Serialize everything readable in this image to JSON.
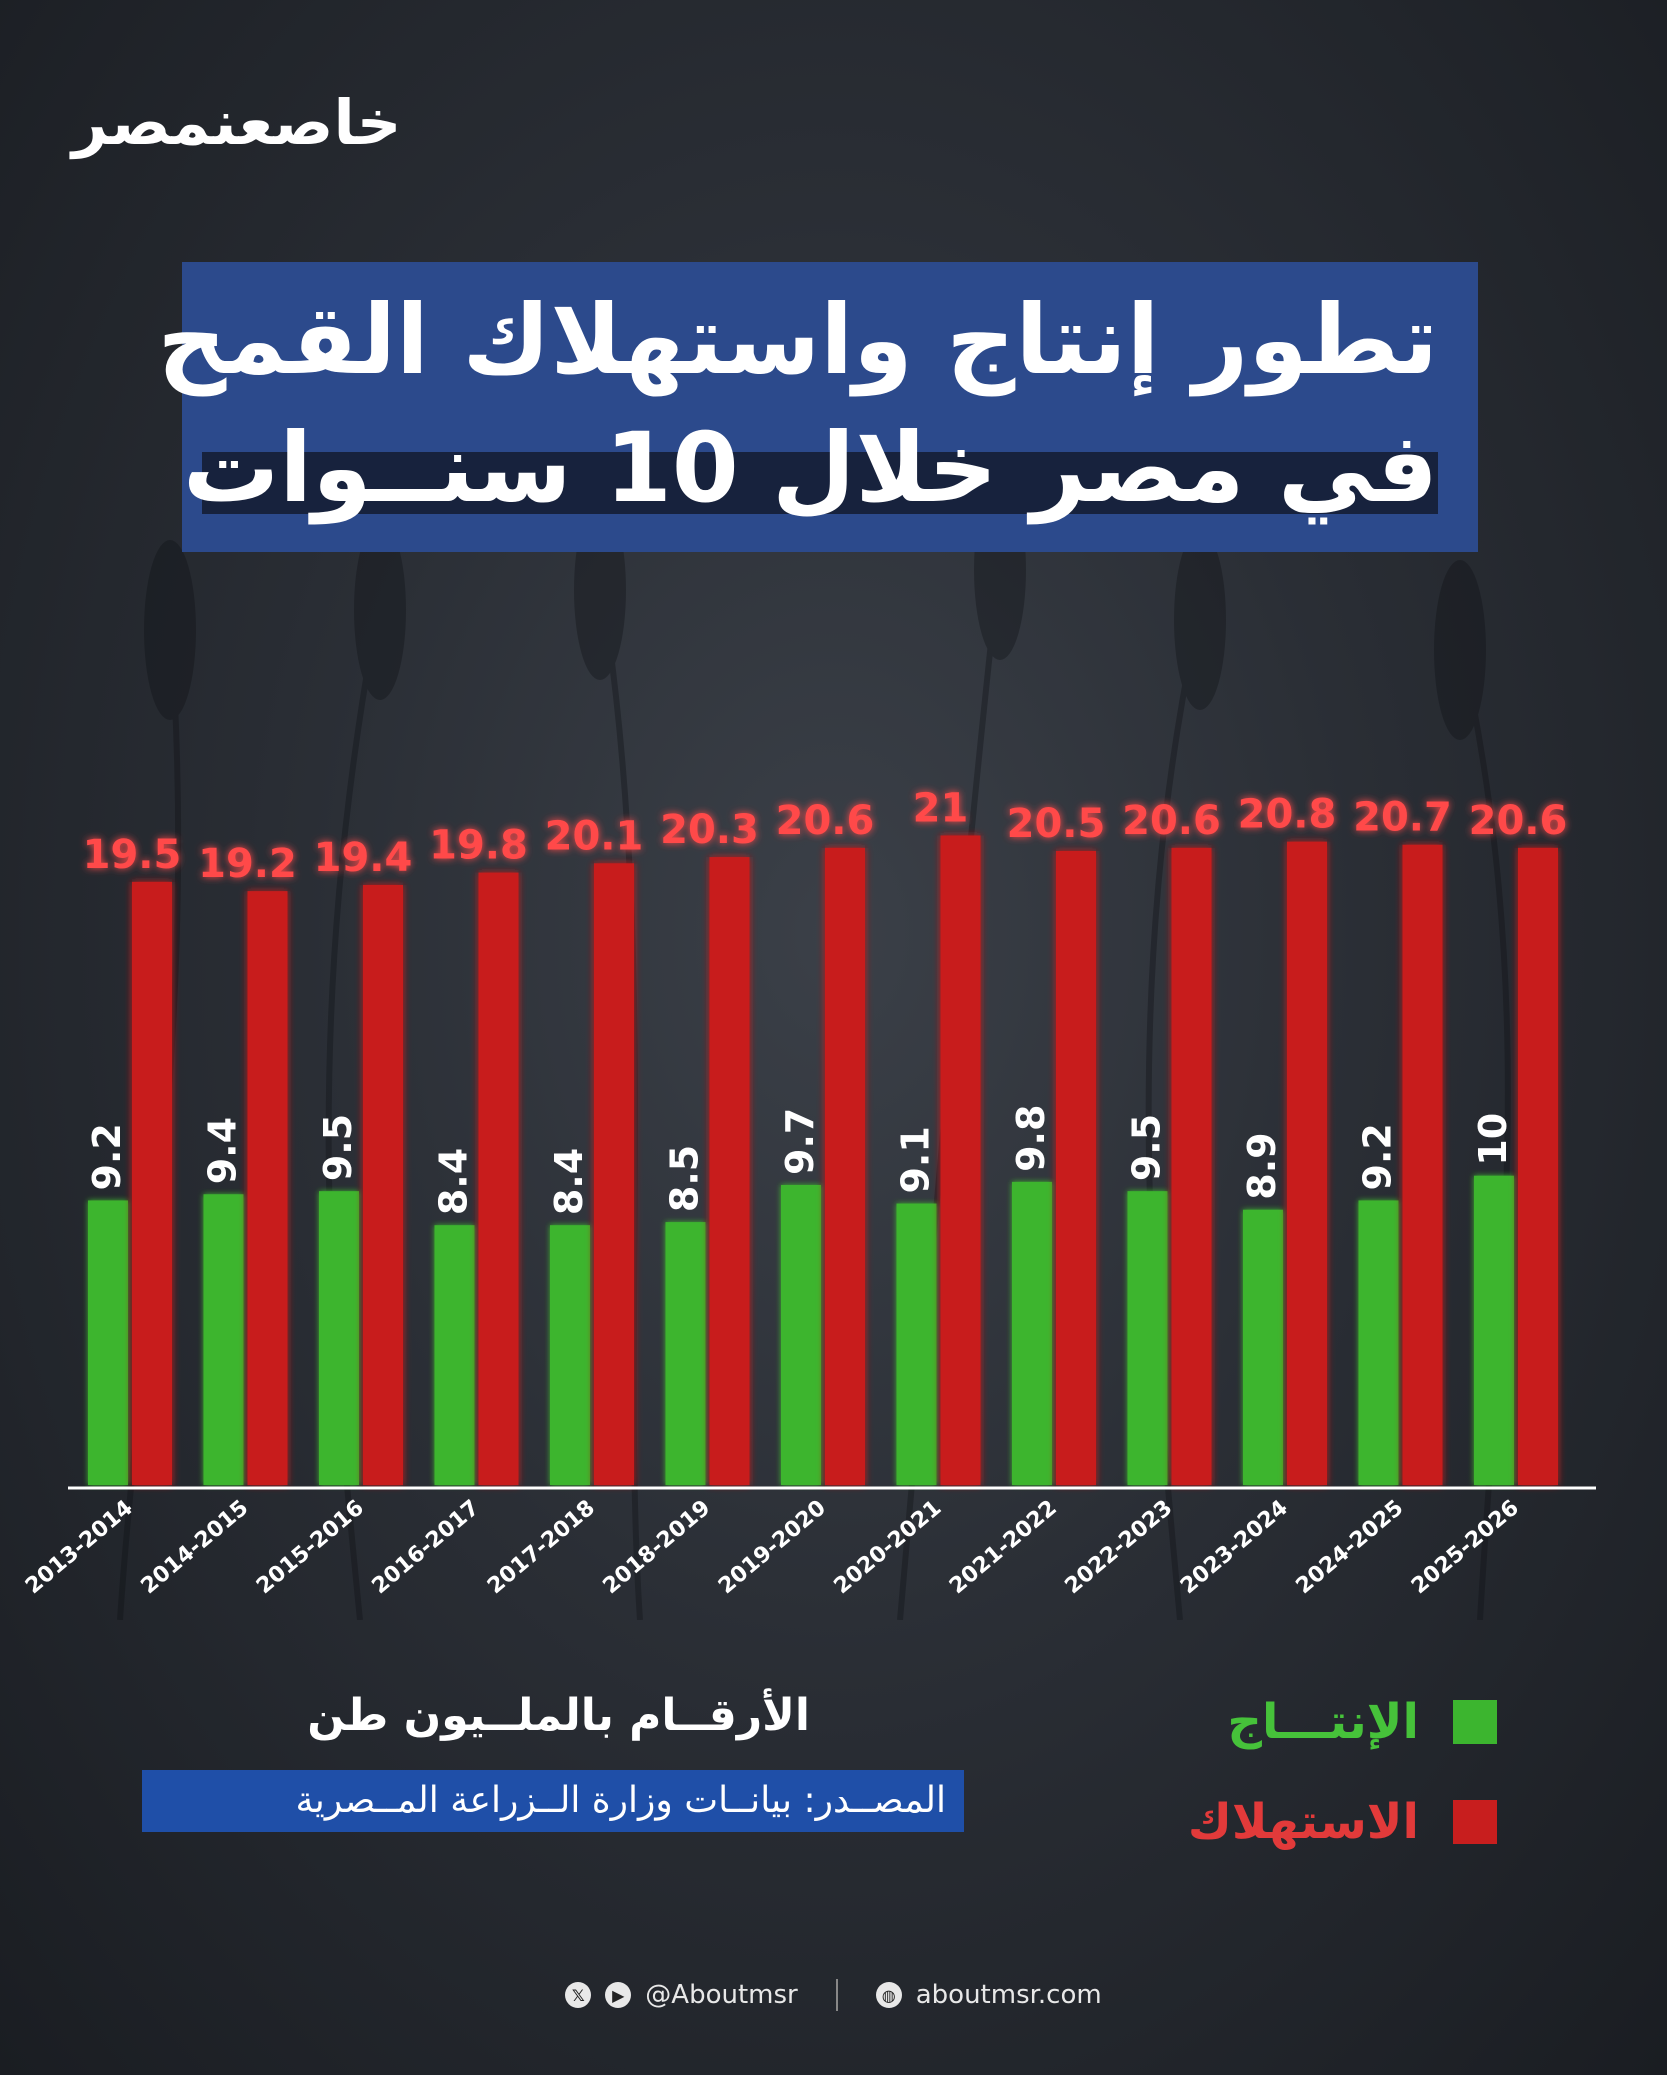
{
  "brand": {
    "logo_text": "خاصعنمصر"
  },
  "title": {
    "line1": "تطور إنتاج واستهلاك القمح",
    "line2": "في مصر خلال 10 سنــوات"
  },
  "legend": {
    "production": "الإنتـــاج",
    "consumption": "الاستهلاك"
  },
  "units_note": "الأرقــام بالملــيون طن",
  "source": "المصــدر: بيانــات وزارة الــزراعة المــصرية",
  "footer": {
    "handle": "@Aboutmsr",
    "website": "aboutmsr.com",
    "icons": [
      "x-icon",
      "youtube-icon",
      "globe-icon"
    ]
  },
  "colors": {
    "production": "#3cb52f",
    "consumption": "#c81e1e",
    "title_bg": "#2c4a8c",
    "source_bg": "#1f4fa8"
  },
  "chart_data": {
    "type": "bar",
    "categories": [
      "2013-2014",
      "2014-2015",
      "2015-2016",
      "2016-2017",
      "2017-2018",
      "2018-2019",
      "2019-2020",
      "2020-2021",
      "2021-2022",
      "2022-2023",
      "2023-2024",
      "2024-2025",
      "2025-2026"
    ],
    "series": [
      {
        "name": "الإنتـــاج",
        "values": [
          9.2,
          9.4,
          9.5,
          8.4,
          8.4,
          8.5,
          9.7,
          9.1,
          9.8,
          9.5,
          8.9,
          9.2,
          10
        ]
      },
      {
        "name": "الاستهلاك",
        "values": [
          19.5,
          19.2,
          19.4,
          19.8,
          20.1,
          20.3,
          20.6,
          21,
          20.5,
          20.6,
          20.8,
          20.7,
          20.6
        ]
      }
    ],
    "title": "تطور إنتاج واستهلاك القمح في مصر خلال 10 سنــوات",
    "ylabel": "",
    "ylim": [
      0,
      21.5
    ],
    "grid": false,
    "legend": "bottom-right"
  }
}
